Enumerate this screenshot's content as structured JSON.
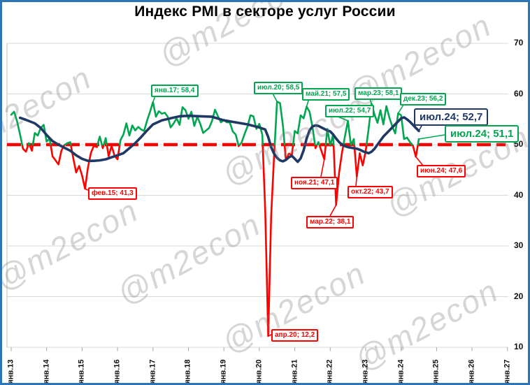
{
  "title": "Индекс PMI в секторе услуг России",
  "watermark": "@m2econ",
  "colors": {
    "green": "#00A650",
    "red": "#FF0000",
    "navy": "#1F3864",
    "grid": "#D9D9D9",
    "axis": "#BFBFBF",
    "tick": "#A6A6A6",
    "frame_border": "#2E75B6"
  },
  "chart_data": {
    "type": "line",
    "title": "Индекс PMI в секторе услуг России",
    "x_ticks": [
      "янв.13",
      "янв.14",
      "янв.15",
      "янв.16",
      "янв.17",
      "янв.18",
      "янв.19",
      "янв.20",
      "янв.21",
      "янв.22",
      "янв.23",
      "янв.24",
      "янв.25",
      "янв.26",
      "янв.27"
    ],
    "y_ticks": [
      70,
      60,
      50,
      40,
      30,
      20,
      10
    ],
    "ylim": [
      10,
      70
    ],
    "grid": "horizontal",
    "legend_position": "none",
    "reference_line": {
      "value": 50,
      "color": "#FF0000",
      "style": "dashed"
    },
    "series": [
      {
        "key": "pmi_monthly",
        "start": "2013-01",
        "frequency": "monthly",
        "threshold": 50,
        "color_above": "#00A650",
        "color_below": "#FF0000",
        "values": [
          55.9,
          56.5,
          54.6,
          52.0,
          49.2,
          48.6,
          50.3,
          48.8,
          52.3,
          51.8,
          53.3,
          53.9,
          50.6,
          51.2,
          47.7,
          46.9,
          46.1,
          48.8,
          49.9,
          50.3,
          50.5,
          47.4,
          44.5,
          45.8,
          43.9,
          41.3,
          45.5,
          48.4,
          49.8,
          49.5,
          51.6,
          49.3,
          51.3,
          47.7,
          49.8,
          47.8,
          47.1,
          50.9,
          52.0,
          54.2,
          51.8,
          53.8,
          52.8,
          53.5,
          53.0,
          52.7,
          54.7,
          56.5,
          58.4,
          55.5,
          56.6,
          56.1,
          56.3,
          55.5,
          53.4,
          54.2,
          55.2,
          53.9,
          57.4,
          56.8,
          55.1,
          56.5,
          53.7,
          55.5,
          54.1,
          52.3,
          52.8,
          53.3,
          54.7,
          56.9,
          55.6,
          54.4,
          54.9,
          54.4,
          54.4,
          52.6,
          52.0,
          49.7,
          50.4,
          52.1,
          53.6,
          55.8,
          55.6,
          53.1,
          54.1,
          52.0,
          37.1,
          12.2,
          35.9,
          47.8,
          58.5,
          58.2,
          53.7,
          46.9,
          48.2,
          48.0,
          52.7,
          52.2,
          55.8,
          55.2,
          57.5,
          56.5,
          53.5,
          49.3,
          50.5,
          48.8,
          47.1,
          53.1,
          49.8,
          52.1,
          38.1,
          44.5,
          48.5,
          51.7,
          54.7,
          49.9,
          51.1,
          43.7,
          48.3,
          45.9,
          48.7,
          53.1,
          58.1,
          55.9,
          54.3,
          56.8,
          54.0,
          57.6,
          55.4,
          53.6,
          52.2,
          56.2,
          55.8,
          51.1,
          51.4,
          50.5,
          49.8,
          47.6,
          51.1
        ]
      },
      {
        "key": "pmi_trend_12m",
        "color": "#1F3864",
        "points": [
          [
            3,
            55.3
          ],
          [
            5,
            54.9
          ],
          [
            8,
            54.2
          ],
          [
            10,
            53.3
          ],
          [
            12,
            51.9
          ],
          [
            14,
            50.7
          ],
          [
            16,
            50.0
          ],
          [
            18,
            49.4
          ],
          [
            20,
            48.8
          ],
          [
            22,
            47.9
          ],
          [
            24,
            47.2
          ],
          [
            26,
            46.8
          ],
          [
            28,
            46.8
          ],
          [
            30,
            46.9
          ],
          [
            32,
            47.1
          ],
          [
            34,
            47.5
          ],
          [
            36,
            47.9
          ],
          [
            38,
            48.3
          ],
          [
            40,
            49.3
          ],
          [
            42,
            50.3
          ],
          [
            44,
            51.5
          ],
          [
            46,
            52.8
          ],
          [
            48,
            54.0
          ],
          [
            51,
            54.8
          ],
          [
            54,
            55.2
          ],
          [
            57,
            55.6
          ],
          [
            60,
            55.7
          ],
          [
            64,
            55.6
          ],
          [
            68,
            55.5
          ],
          [
            72,
            54.8
          ],
          [
            76,
            54.4
          ],
          [
            80,
            54.0
          ],
          [
            84,
            53.4
          ],
          [
            86,
            53.0
          ],
          [
            87,
            51.5
          ],
          [
            88,
            49.5
          ],
          [
            89,
            48.2
          ],
          [
            90,
            47.4
          ],
          [
            91,
            46.9
          ],
          [
            92,
            46.7
          ],
          [
            93,
            47.0
          ],
          [
            94,
            47.5
          ],
          [
            95,
            47.8
          ],
          [
            96,
            47.2
          ],
          [
            97,
            46.6
          ],
          [
            98,
            47.3
          ],
          [
            99,
            48.9
          ],
          [
            100,
            51.2
          ],
          [
            101,
            52.8
          ],
          [
            102,
            53.6
          ],
          [
            103,
            53.8
          ],
          [
            104,
            53.7
          ],
          [
            105,
            53.4
          ],
          [
            106,
            53.1
          ],
          [
            107,
            52.8
          ],
          [
            108,
            52.6
          ],
          [
            109,
            52.0
          ],
          [
            110,
            51.2
          ],
          [
            111,
            50.5
          ],
          [
            112,
            50.0
          ],
          [
            113,
            49.7
          ],
          [
            114,
            49.5
          ],
          [
            115,
            49.4
          ],
          [
            116,
            49.3
          ],
          [
            117,
            49.2
          ],
          [
            118,
            49.0
          ],
          [
            119,
            48.7
          ],
          [
            120,
            48.5
          ],
          [
            121,
            48.3
          ],
          [
            122,
            48.6
          ],
          [
            123,
            49.2
          ],
          [
            124,
            50.0
          ],
          [
            125,
            50.8
          ],
          [
            126,
            51.6
          ],
          [
            127,
            52.2
          ],
          [
            128,
            52.8
          ],
          [
            129,
            53.4
          ],
          [
            130,
            54.0
          ],
          [
            131,
            54.6
          ],
          [
            132,
            55.2
          ],
          [
            133,
            55.4
          ],
          [
            134,
            55.0
          ],
          [
            135,
            54.5
          ],
          [
            136,
            53.9
          ],
          [
            137,
            53.3
          ],
          [
            138,
            52.7
          ]
        ]
      }
    ],
    "annotations": [
      {
        "id": "jan17",
        "text": "янв.17; 58,4",
        "month": 48,
        "value": 58.4,
        "color": "#00A650",
        "size": "small"
      },
      {
        "id": "jul20",
        "text": "июл.20; 58,5",
        "month": 90,
        "value": 58.5,
        "color": "#00A650",
        "size": "small"
      },
      {
        "id": "may21",
        "text": "май.21; 57,5",
        "month": 100,
        "value": 57.5,
        "color": "#00A650",
        "size": "small"
      },
      {
        "id": "jul22",
        "text": "июл.22; 54,7",
        "month": 114,
        "value": 54.7,
        "color": "#00A650",
        "size": "small"
      },
      {
        "id": "mar23",
        "text": "мар.23; 58,1",
        "month": 122,
        "value": 58.1,
        "color": "#00A650",
        "size": "small"
      },
      {
        "id": "dec23",
        "text": "дек.23; 56,2",
        "month": 131,
        "value": 56.2,
        "color": "#00A650",
        "size": "small"
      },
      {
        "id": "jul24avg",
        "text": "июл.24; 52,7",
        "month": 138,
        "value": 52.7,
        "color": "#1F3864",
        "size": "big"
      },
      {
        "id": "jul24",
        "text": "июл.24; 51,1",
        "month": 138,
        "value": 51.1,
        "color": "#00A650",
        "size": "big"
      },
      {
        "id": "jun24",
        "text": "июн.24; 47,6",
        "month": 137,
        "value": 47.6,
        "color": "#FF0000",
        "size": "small"
      },
      {
        "id": "nov21",
        "text": "ноя.21; 47,1",
        "month": 106,
        "value": 47.1,
        "color": "#FF0000",
        "size": "small"
      },
      {
        "id": "oct22",
        "text": "окт.22; 43,7",
        "month": 117,
        "value": 43.7,
        "color": "#FF0000",
        "size": "small"
      },
      {
        "id": "mar22",
        "text": "мар.22; 38,1",
        "month": 110,
        "value": 38.1,
        "color": "#FF0000",
        "size": "small"
      },
      {
        "id": "feb15",
        "text": "фев.15; 41,3",
        "month": 25,
        "value": 41.3,
        "color": "#FF0000",
        "size": "small"
      },
      {
        "id": "apr20",
        "text": "апр.20; 12,2",
        "month": 87,
        "value": 12.2,
        "color": "#FF0000",
        "size": "small"
      }
    ]
  }
}
